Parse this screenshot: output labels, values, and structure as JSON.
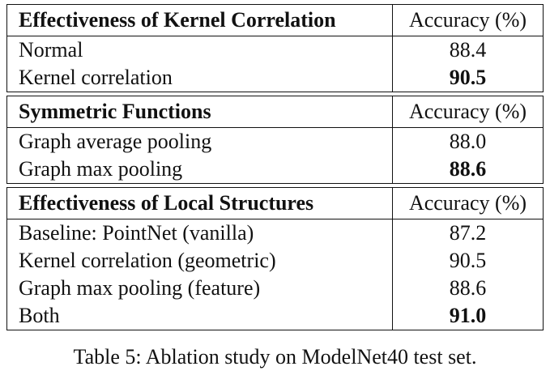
{
  "table": {
    "groups": [
      {
        "header": "Effectiveness of Kernel Correlation",
        "metric": "Accuracy (%)",
        "rows": [
          {
            "label": "Normal",
            "value": "88.4",
            "bold": false
          },
          {
            "label": "Kernel correlation",
            "value": "90.5",
            "bold": true
          }
        ]
      },
      {
        "header": "Symmetric Functions",
        "metric": "Accuracy (%)",
        "rows": [
          {
            "label": "Graph average pooling",
            "value": "88.0",
            "bold": false
          },
          {
            "label": "Graph max pooling",
            "value": "88.6",
            "bold": true
          }
        ]
      },
      {
        "header": "Effectiveness of Local Structures",
        "metric": "Accuracy (%)",
        "rows": [
          {
            "label": "Baseline: PointNet (vanilla)",
            "value": "87.2",
            "bold": false
          },
          {
            "label": "Kernel correlation (geometric)",
            "value": "90.5",
            "bold": false
          },
          {
            "label": "Graph max pooling (feature)",
            "value": "88.6",
            "bold": false
          },
          {
            "label": "Both",
            "value": "91.0",
            "bold": true
          }
        ]
      }
    ]
  },
  "caption": "Table 5: Ablation study on ModelNet40 test set."
}
